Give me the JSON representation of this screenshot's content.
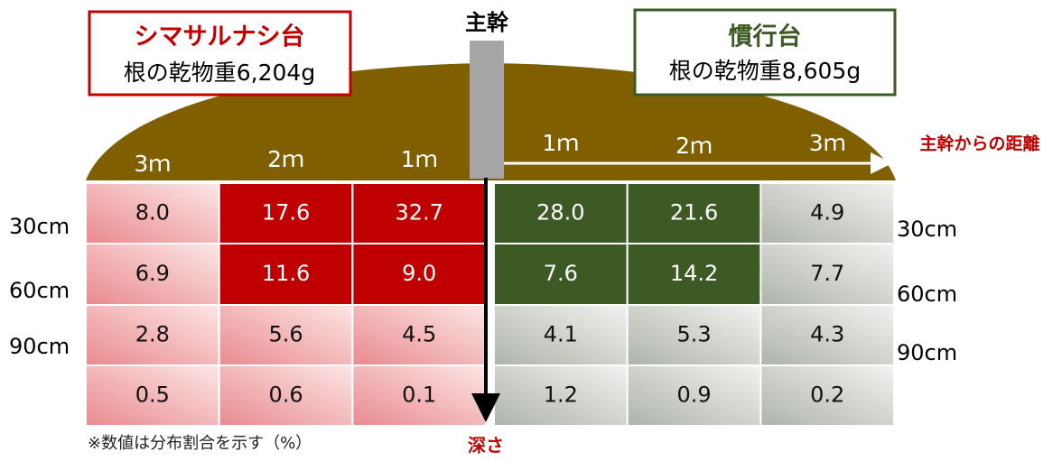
{
  "trunk_label": "主幹",
  "distance_label": "主幹からの距離",
  "depth_label": "深さ",
  "note": "※数値は分布割合を示す（%）",
  "left": {
    "title": "シマサルナシ台",
    "subtitle": "根の乾物重6,204g",
    "distances": [
      "3ｍ",
      "2ｍ",
      "1ｍ"
    ],
    "depths": [
      "30cm",
      "60cm",
      "90cm"
    ],
    "rows": [
      [
        "8.0",
        "17.6",
        "32.7"
      ],
      [
        "6.9",
        "11.6",
        "9.0"
      ],
      [
        "2.8",
        "5.6",
        "4.5"
      ],
      [
        "0.5",
        "0.6",
        "0.1"
      ]
    ]
  },
  "right": {
    "title": "慣行台",
    "subtitle": "根の乾物重8,605g",
    "distances": [
      "1ｍ",
      "2ｍ",
      "3ｍ"
    ],
    "depths": [
      "30cm",
      "60cm",
      "90cm"
    ],
    "rows": [
      [
        "28.0",
        "21.6",
        "4.9"
      ],
      [
        "7.6",
        "14.2",
        "7.7"
      ],
      [
        "4.1",
        "5.3",
        "4.3"
      ],
      [
        "1.2",
        "0.9",
        "0.2"
      ]
    ]
  }
}
